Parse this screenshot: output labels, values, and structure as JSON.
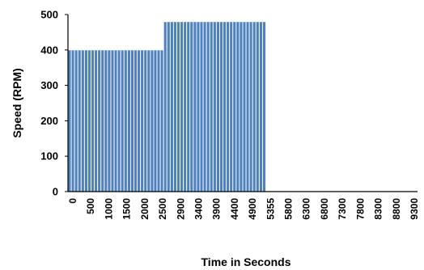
{
  "chart_data": {
    "type": "bar",
    "title": "",
    "xlabel": "Time in Seconds",
    "ylabel": "Speed (RPM)",
    "ylim": [
      0,
      500
    ],
    "yticks": [
      0,
      100,
      200,
      300,
      400,
      500
    ],
    "grid": false,
    "legend": "none",
    "bar_color": "#4f81bd",
    "x_tick_labels": [
      "0",
      "500",
      "1000",
      "1500",
      "2000",
      "2500",
      "2900",
      "3400",
      "3900",
      "4400",
      "4900",
      "5355",
      "5800",
      "6300",
      "6800",
      "7300",
      "7800",
      "8300",
      "8800",
      "9300"
    ],
    "series": [
      {
        "segments": [
          {
            "x_start": 0,
            "x_end": 2600,
            "value": 400
          },
          {
            "x_start": 2600,
            "x_end": 5355,
            "value": 480
          },
          {
            "x_start": 5355,
            "x_end": 9500,
            "value": 0
          }
        ]
      }
    ]
  }
}
